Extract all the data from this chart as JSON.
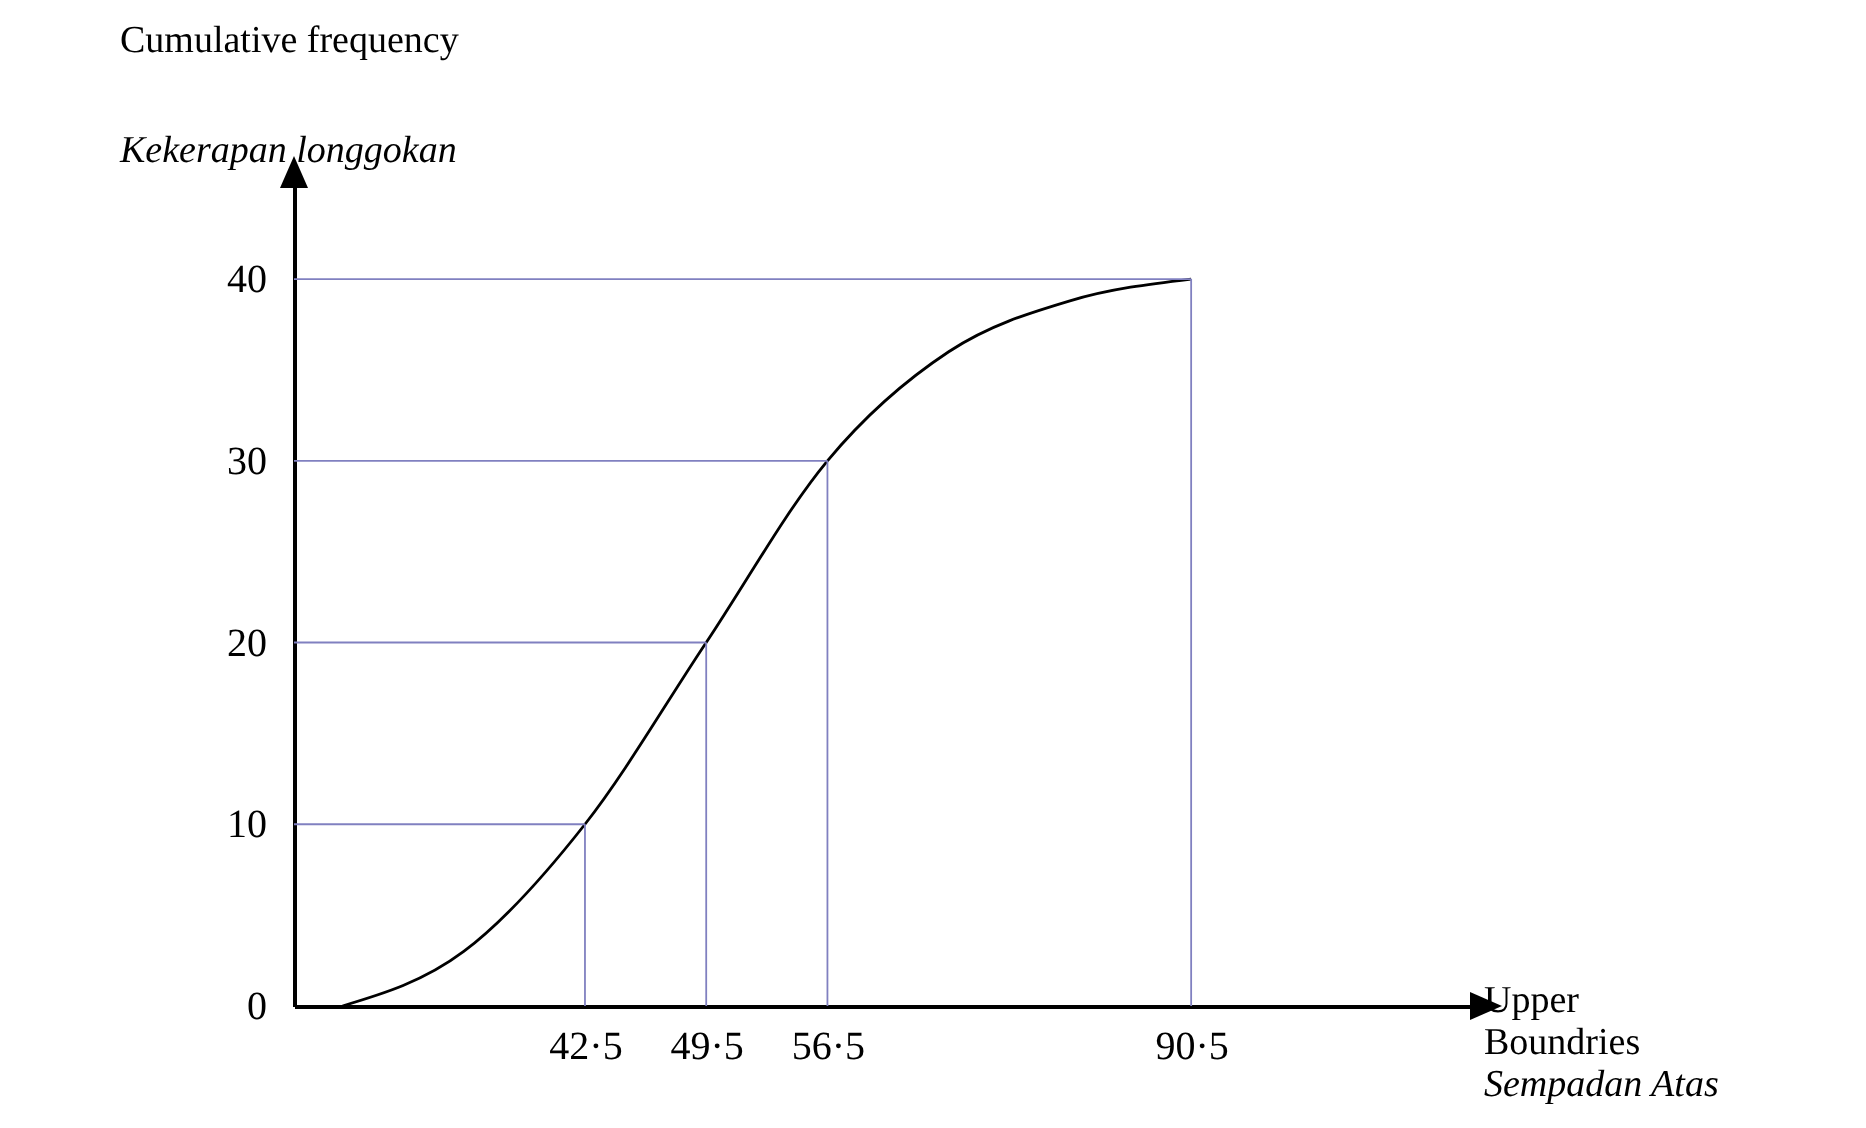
{
  "chart_data": {
    "type": "line",
    "annotations": [
      "Upper Boundries\nSempadan Atas"
    ],
    "ylabel": "Cumulative frequency\nKekerapan longgokan",
    "categories": [
      null,
      null,
      "42·5",
      "49·5",
      "56·5",
      null,
      null,
      "90·5"
    ],
    "series": [
      {
        "color": "#000000",
        "values": [
          0,
          3,
          10,
          20,
          30,
          36,
          38.8,
          40
        ]
      }
    ],
    "ylim": [
      0,
      46
    ],
    "yticks": [
      0,
      10,
      20,
      30,
      40
    ],
    "grid": false,
    "marker": "none",
    "line_style": "solid",
    "ref_lines": [
      {
        "axis": "y",
        "value": 10,
        "color": "#8080c0"
      },
      {
        "axis": "y",
        "value": 20,
        "color": "#8080c0"
      },
      {
        "axis": "y",
        "value": 30,
        "color": "#8080c0"
      },
      {
        "axis": "y",
        "value": 40,
        "color": "#8080c0"
      },
      {
        "axis": "x",
        "value": "42·5",
        "color": "#8080c0"
      },
      {
        "axis": "x",
        "value": "49·5",
        "color": "#8080c0"
      },
      {
        "axis": "x",
        "value": "56·5",
        "color": "#8080c0"
      },
      {
        "axis": "x",
        "value": "90·5",
        "color": "#8080c0"
      }
    ]
  }
}
